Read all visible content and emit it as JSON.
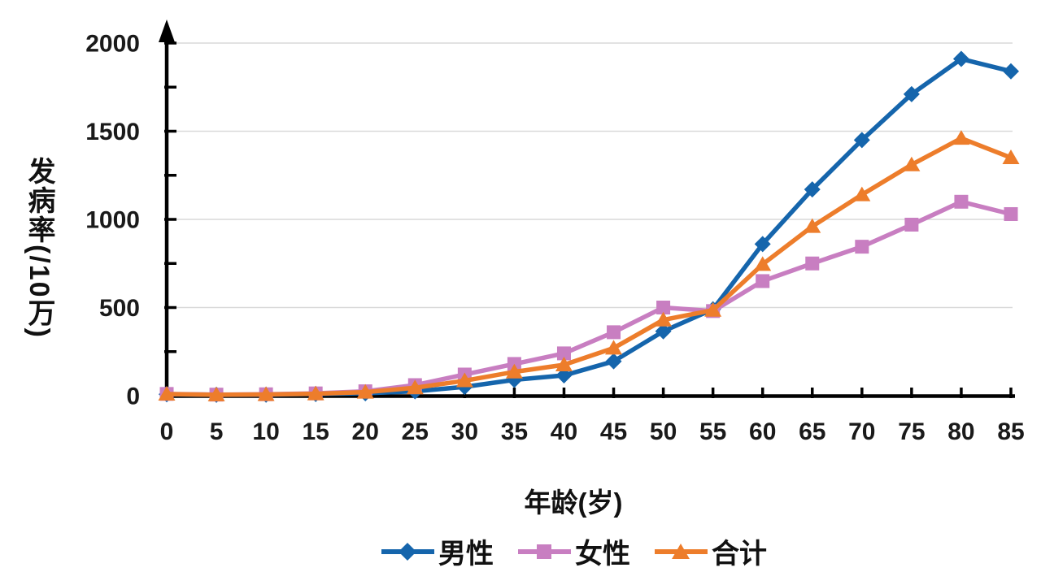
{
  "chart_data": {
    "type": "line",
    "xlabel": "年龄(岁)",
    "ylabel": "发病率(/10万)",
    "categories": [
      0,
      5,
      10,
      15,
      20,
      25,
      30,
      35,
      40,
      45,
      50,
      55,
      60,
      65,
      70,
      75,
      80,
      85
    ],
    "series": [
      {
        "name": "男性",
        "marker": "diamond",
        "color": "#1565ac",
        "values": [
          8,
          5,
          6,
          10,
          14,
          25,
          50,
          90,
          115,
          195,
          365,
          490,
          860,
          1170,
          1450,
          1710,
          1910,
          1840
        ]
      },
      {
        "name": "女性",
        "marker": "square",
        "color": "#c87ec1",
        "values": [
          10,
          6,
          8,
          13,
          25,
          60,
          120,
          180,
          240,
          360,
          500,
          480,
          650,
          750,
          845,
          970,
          1100,
          1030
        ]
      },
      {
        "name": "合计",
        "marker": "triangle",
        "color": "#ed7d2b",
        "values": [
          9,
          5,
          7,
          11,
          20,
          45,
          85,
          135,
          175,
          270,
          430,
          485,
          745,
          960,
          1140,
          1310,
          1460,
          1350
        ]
      }
    ],
    "ylim": [
      0,
      2000
    ],
    "yticks": [
      0,
      500,
      1000,
      1500,
      2000
    ],
    "ytick_minor_interval": 250,
    "grid": "horizontal-major",
    "legend_position": "bottom",
    "axis_color": "#000000",
    "gridline_color": "#d9d9d9",
    "tick_label_color": "#1a1a1a"
  }
}
